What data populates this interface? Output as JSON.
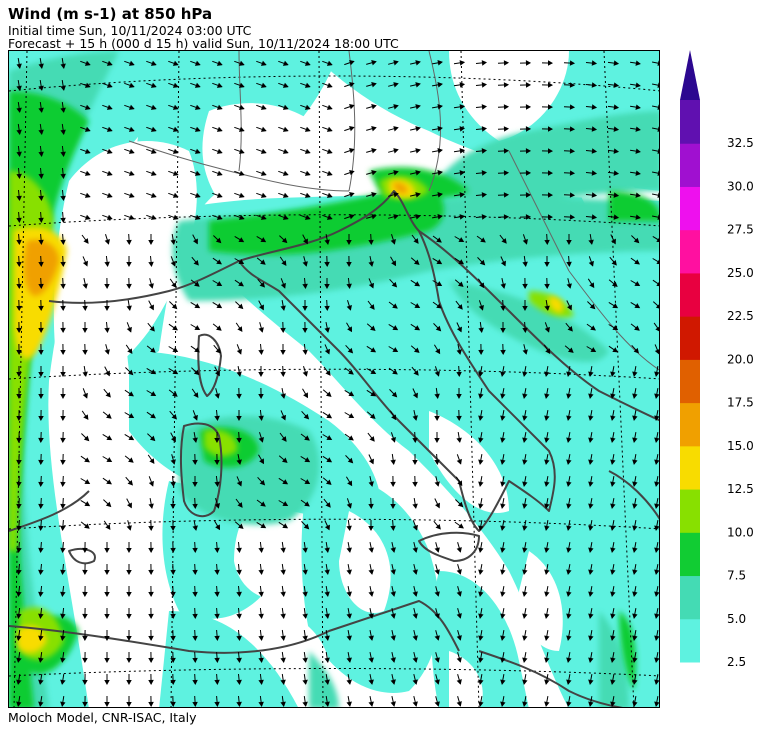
{
  "header": {
    "title": "Wind (m s-1) at 850 hPa",
    "initial_time": "Initial time  Sun, 10/11/2024  03:00 UTC",
    "forecast": "Forecast  +  15 h  (000 d 15 h)  valid Sun, 10/11/2024 18:00 UTC"
  },
  "footer": {
    "credit": "Moloch Model, CNR-ISAC, Italy"
  },
  "colorbar": {
    "levels": [
      "2.5",
      "5.0",
      "7.5",
      "10.0",
      "12.5",
      "15.0",
      "17.5",
      "20.0",
      "22.5",
      "25.0",
      "27.5",
      "30.0",
      "32.5"
    ],
    "colors": [
      "#5ef2e0",
      "#44dbb4",
      "#11cc33",
      "#88e000",
      "#f8dc00",
      "#f0a000",
      "#e06000",
      "#d01800",
      "#e80040",
      "#ff10a0",
      "#ee10ee",
      "#a010d0",
      "#6010b0"
    ],
    "extend_color": "#2c0890"
  },
  "map": {
    "land_color": "#ffffff",
    "coast_color": "#444444",
    "wind_bands": [
      {
        "level": "2.5",
        "color": "#5ef2e0"
      },
      {
        "level": "5.0",
        "color": "#44dbb4"
      },
      {
        "level": "7.5",
        "color": "#11cc33"
      },
      {
        "level": "10.0",
        "color": "#88e000"
      },
      {
        "level": "12.5",
        "color": "#f8dc00"
      },
      {
        "level": "15.0",
        "color": "#f0a000"
      }
    ]
  }
}
